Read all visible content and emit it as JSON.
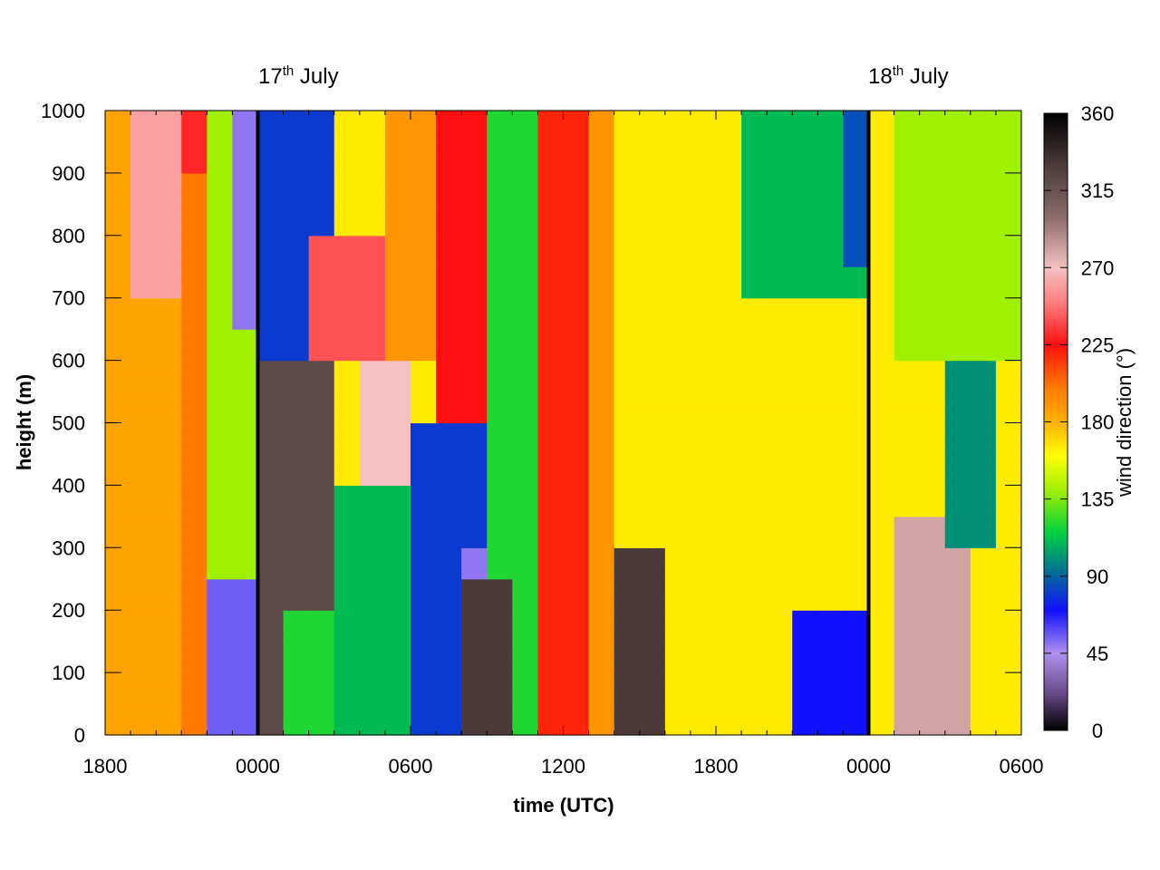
{
  "chart_data": {
    "type": "heatmap",
    "title": "",
    "xlabel": "time (UTC)",
    "ylabel": "height (m)",
    "colorbar_label": "wind direction (°)",
    "x_tick_labels": [
      "1800",
      "0000",
      "0600",
      "1200",
      "1800",
      "0000",
      "0600"
    ],
    "x_range_hours": [
      0,
      36
    ],
    "y_ticks": [
      0,
      100,
      200,
      300,
      400,
      500,
      600,
      700,
      800,
      900,
      1000
    ],
    "ylim": [
      0,
      1000
    ],
    "colorbar_ticks": [
      0,
      45,
      90,
      135,
      180,
      225,
      270,
      315,
      360
    ],
    "colorbar_range": [
      0,
      360
    ],
    "grid": false,
    "day_markers": [
      {
        "hour": 6,
        "label_prefix": "17",
        "label_sup": "th",
        "label_suffix": " July"
      },
      {
        "hour": 30,
        "label_prefix": "18",
        "label_sup": "th",
        "label_suffix": " July"
      }
    ],
    "colormap": [
      {
        "v": 0,
        "color": "#000000"
      },
      {
        "v": 22,
        "color": "#6a4a8a"
      },
      {
        "v": 45,
        "color": "#b090f0"
      },
      {
        "v": 70,
        "color": "#1010ff"
      },
      {
        "v": 95,
        "color": "#007a8a"
      },
      {
        "v": 115,
        "color": "#00d040"
      },
      {
        "v": 140,
        "color": "#a0f000"
      },
      {
        "v": 160,
        "color": "#ffff00"
      },
      {
        "v": 180,
        "color": "#ffb000"
      },
      {
        "v": 200,
        "color": "#ff7a00"
      },
      {
        "v": 225,
        "color": "#ff1010"
      },
      {
        "v": 250,
        "color": "#ff8080"
      },
      {
        "v": 270,
        "color": "#f4c0c0"
      },
      {
        "v": 300,
        "color": "#8a6a6a"
      },
      {
        "v": 330,
        "color": "#4a3a3a"
      },
      {
        "v": 360,
        "color": "#000000"
      }
    ],
    "grid_resolution": {
      "dt_hours": 1,
      "dz_m": 25
    },
    "regions_note": "wind direction field in degrees, estimated by region",
    "field_regions": [
      {
        "t": [
          0,
          36
        ],
        "z": [
          0,
          1000
        ],
        "value": 165
      },
      {
        "t": [
          0,
          3
        ],
        "z": [
          0,
          1000
        ],
        "value": 185
      },
      {
        "t": [
          1,
          3
        ],
        "z": [
          700,
          1000
        ],
        "value": 260
      },
      {
        "t": [
          3,
          4
        ],
        "z": [
          0,
          900
        ],
        "value": 200
      },
      {
        "t": [
          3,
          4
        ],
        "z": [
          900,
          1000
        ],
        "value": 230
      },
      {
        "t": [
          4,
          5
        ],
        "z": [
          0,
          1000
        ],
        "value": 140
      },
      {
        "t": [
          4.5,
          6
        ],
        "z": [
          0,
          250
        ],
        "value": 55
      },
      {
        "t": [
          5,
          6
        ],
        "z": [
          250,
          650
        ],
        "value": 140
      },
      {
        "t": [
          5,
          6
        ],
        "z": [
          650,
          1000
        ],
        "value": 50
      },
      {
        "t": [
          6,
          9
        ],
        "z": [
          0,
          600
        ],
        "value": 320
      },
      {
        "t": [
          6,
          9
        ],
        "z": [
          600,
          1000
        ],
        "value": 80
      },
      {
        "t": [
          7,
          9
        ],
        "z": [
          0,
          200
        ],
        "value": 120
      },
      {
        "t": [
          8,
          11
        ],
        "z": [
          600,
          800
        ],
        "value": 240
      },
      {
        "t": [
          9,
          14
        ],
        "z": [
          0,
          400
        ],
        "value": 110
      },
      {
        "t": [
          10,
          12
        ],
        "z": [
          400,
          600
        ],
        "value": 270
      },
      {
        "t": [
          11,
          13
        ],
        "z": [
          600,
          1000
        ],
        "value": 190
      },
      {
        "t": [
          12,
          15
        ],
        "z": [
          0,
          500
        ],
        "value": 80
      },
      {
        "t": [
          13,
          15
        ],
        "z": [
          500,
          1000
        ],
        "value": 225
      },
      {
        "t": [
          14,
          16
        ],
        "z": [
          0,
          300
        ],
        "value": 50
      },
      {
        "t": [
          15,
          17
        ],
        "z": [
          0,
          1000
        ],
        "value": 120
      },
      {
        "t": [
          14.5,
          15.5
        ],
        "z": [
          0,
          250
        ],
        "value": 330
      },
      {
        "t": [
          17,
          19
        ],
        "z": [
          0,
          1000
        ],
        "value": 220
      },
      {
        "t": [
          19,
          20
        ],
        "z": [
          0,
          1000
        ],
        "value": 190
      },
      {
        "t": [
          20,
          22
        ],
        "z": [
          0,
          300
        ],
        "value": 330
      },
      {
        "t": [
          22,
          28
        ],
        "z": [
          0,
          1000
        ],
        "value": 165
      },
      {
        "t": [
          25,
          30
        ],
        "z": [
          700,
          1000
        ],
        "value": 110
      },
      {
        "t": [
          27,
          30
        ],
        "z": [
          0,
          200
        ],
        "value": 70
      },
      {
        "t": [
          29,
          30
        ],
        "z": [
          750,
          1000
        ],
        "value": 85
      },
      {
        "t": [
          31,
          34
        ],
        "z": [
          0,
          350
        ],
        "value": 280
      },
      {
        "t": [
          33,
          35
        ],
        "z": [
          300,
          600
        ],
        "value": 100
      },
      {
        "t": [
          31,
          36
        ],
        "z": [
          600,
          1000
        ],
        "value": 140
      }
    ]
  }
}
